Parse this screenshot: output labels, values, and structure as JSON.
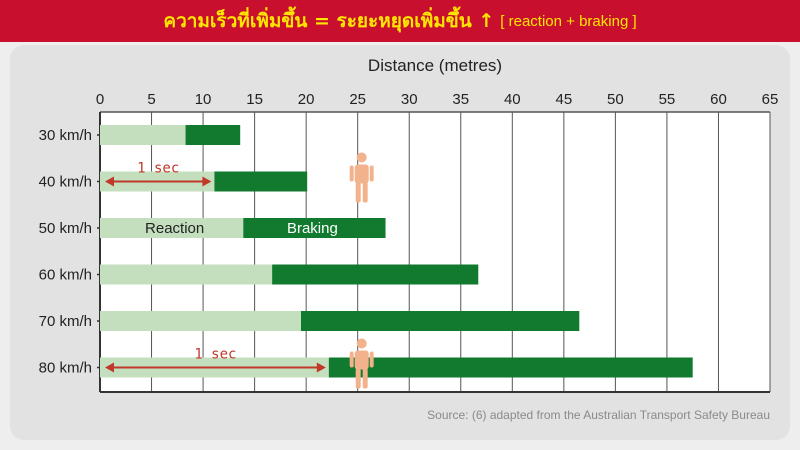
{
  "banner": {
    "thai_text": "ความเร็วที่เพิ่มขึ้น = ระยะหยุดเพิ่มขึ้น ↑",
    "formula": "[ reaction + braking ]"
  },
  "colors": {
    "banner_bg": "#c8102e",
    "banner_text": "#ffe600",
    "reaction": "#c4dfbe",
    "braking": "#127a2e",
    "arrow": "#c0392b",
    "person": "#f2b28c"
  },
  "icons": [
    "pedestrian-icon"
  ],
  "chart_data": {
    "type": "bar",
    "orientation": "horizontal",
    "stacked": true,
    "title": "Distance (metres)",
    "xlim": [
      0,
      65
    ],
    "xticks": [
      0,
      5,
      10,
      15,
      20,
      25,
      30,
      35,
      40,
      45,
      50,
      55,
      60,
      65
    ],
    "grid": true,
    "categories": [
      "30 km/h",
      "40 km/h",
      "50 km/h",
      "60 km/h",
      "70 km/h",
      "80 km/h"
    ],
    "series": [
      {
        "name": "Reaction",
        "values": [
          8.3,
          11.1,
          13.9,
          16.7,
          19.5,
          22.2
        ]
      },
      {
        "name": "Braking",
        "values": [
          5.3,
          9.0,
          13.8,
          20.0,
          27.0,
          35.3
        ]
      }
    ],
    "annotations": [
      {
        "text": "1 sec",
        "category": "40 km/h",
        "from": 0,
        "to": 11.1
      },
      {
        "text": "1 sec",
        "category": "80 km/h",
        "from": 0,
        "to": 22.2
      }
    ],
    "pedestrians": [
      {
        "category": "40 km/h",
        "x": 25
      },
      {
        "category": "80 km/h",
        "x": 25
      }
    ],
    "source": "Source: (6) adapted from the Australian Transport Safety Bureau"
  }
}
